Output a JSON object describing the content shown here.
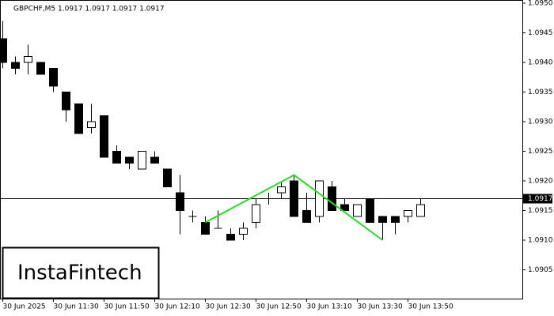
{
  "chart_data": {
    "type": "candlestick",
    "title": "GBPCHF,M5  1.0917 1.0917 1.0917 1.0917",
    "watermark": "InstaFintech",
    "categories": [
      "30 Jun 2025",
      null,
      null,
      null,
      "30 Jun 11:30",
      null,
      null,
      null,
      "30 Jun 11:50",
      null,
      null,
      null,
      "30 Jun 12:10",
      null,
      null,
      null,
      "30 Jun 12:30",
      null,
      null,
      null,
      "30 Jun 12:50",
      null,
      null,
      null,
      "30 Jun 13:10",
      null,
      null,
      null,
      "30 Jun 13:30",
      null,
      null,
      null,
      "30 Jun 13:50",
      null
    ],
    "open": [
      1.0944,
      1.094,
      1.094,
      1.094,
      1.0939,
      1.0935,
      1.0933,
      1.0929,
      1.0931,
      1.0925,
      1.0924,
      1.0922,
      1.0924,
      1.0922,
      1.0918,
      1.0914,
      1.0913,
      1.0912,
      1.0911,
      1.0911,
      1.0913,
      1.0917,
      1.0918,
      1.092,
      1.0915,
      1.0914,
      1.0919,
      1.0916,
      1.0914,
      1.0917,
      1.0914,
      1.0914,
      1.0914,
      1.0914
    ],
    "high": [
      1.0947,
      1.0941,
      1.0943,
      1.094,
      1.0939,
      1.0935,
      1.0933,
      1.0933,
      1.0931,
      1.0926,
      1.0924,
      1.0925,
      1.0925,
      1.0922,
      1.0921,
      1.0915,
      1.0914,
      1.0915,
      1.0912,
      1.0913,
      1.0917,
      1.0918,
      1.092,
      1.0921,
      1.0918,
      1.092,
      1.092,
      1.0917,
      1.0916,
      1.0917,
      1.0914,
      1.0914,
      1.0915,
      1.0917
    ],
    "low": [
      1.0939,
      1.0938,
      1.0938,
      1.0938,
      1.0935,
      1.093,
      1.0928,
      1.0928,
      1.0924,
      1.0923,
      1.0922,
      1.0922,
      1.0923,
      1.0919,
      1.0911,
      1.0913,
      1.0911,
      1.0912,
      1.091,
      1.091,
      1.0912,
      1.0916,
      1.0917,
      1.0914,
      1.0913,
      1.0913,
      1.0915,
      1.0915,
      1.0914,
      1.0913,
      1.091,
      1.0911,
      1.0913,
      1.0914
    ],
    "close": [
      1.094,
      1.0939,
      1.0941,
      1.0938,
      1.0936,
      1.0932,
      1.0928,
      1.093,
      1.0924,
      1.0923,
      1.0923,
      1.0925,
      1.0923,
      1.0919,
      1.0915,
      1.0914,
      1.0911,
      1.0912,
      1.091,
      1.0912,
      1.0916,
      1.0917,
      1.0919,
      1.0914,
      1.0913,
      1.092,
      1.0915,
      1.0915,
      1.0916,
      1.0913,
      1.0913,
      1.0913,
      1.0915,
      1.0916
    ],
    "up_color": "#ffffff",
    "down_color": "#000000",
    "current_price": 1.0917,
    "pattern": {
      "color": "#22dd22",
      "x": [
        16,
        23,
        30
      ],
      "values": [
        1.0913,
        1.0921,
        1.091
      ]
    },
    "ylim": [
      1.09,
      1.095
    ],
    "yticks": [
      {
        "value": 1.095,
        "label": "1.0950"
      },
      1.0945,
      {
        "value": 1.094,
        "label": "1.0940"
      },
      1.0935,
      {
        "value": 1.093,
        "label": "1.0930"
      },
      1.0925,
      {
        "value": 1.092,
        "label": "1.0920"
      },
      1.0915,
      {
        "value": 1.091,
        "label": "1.0910"
      },
      1.0905
    ]
  }
}
